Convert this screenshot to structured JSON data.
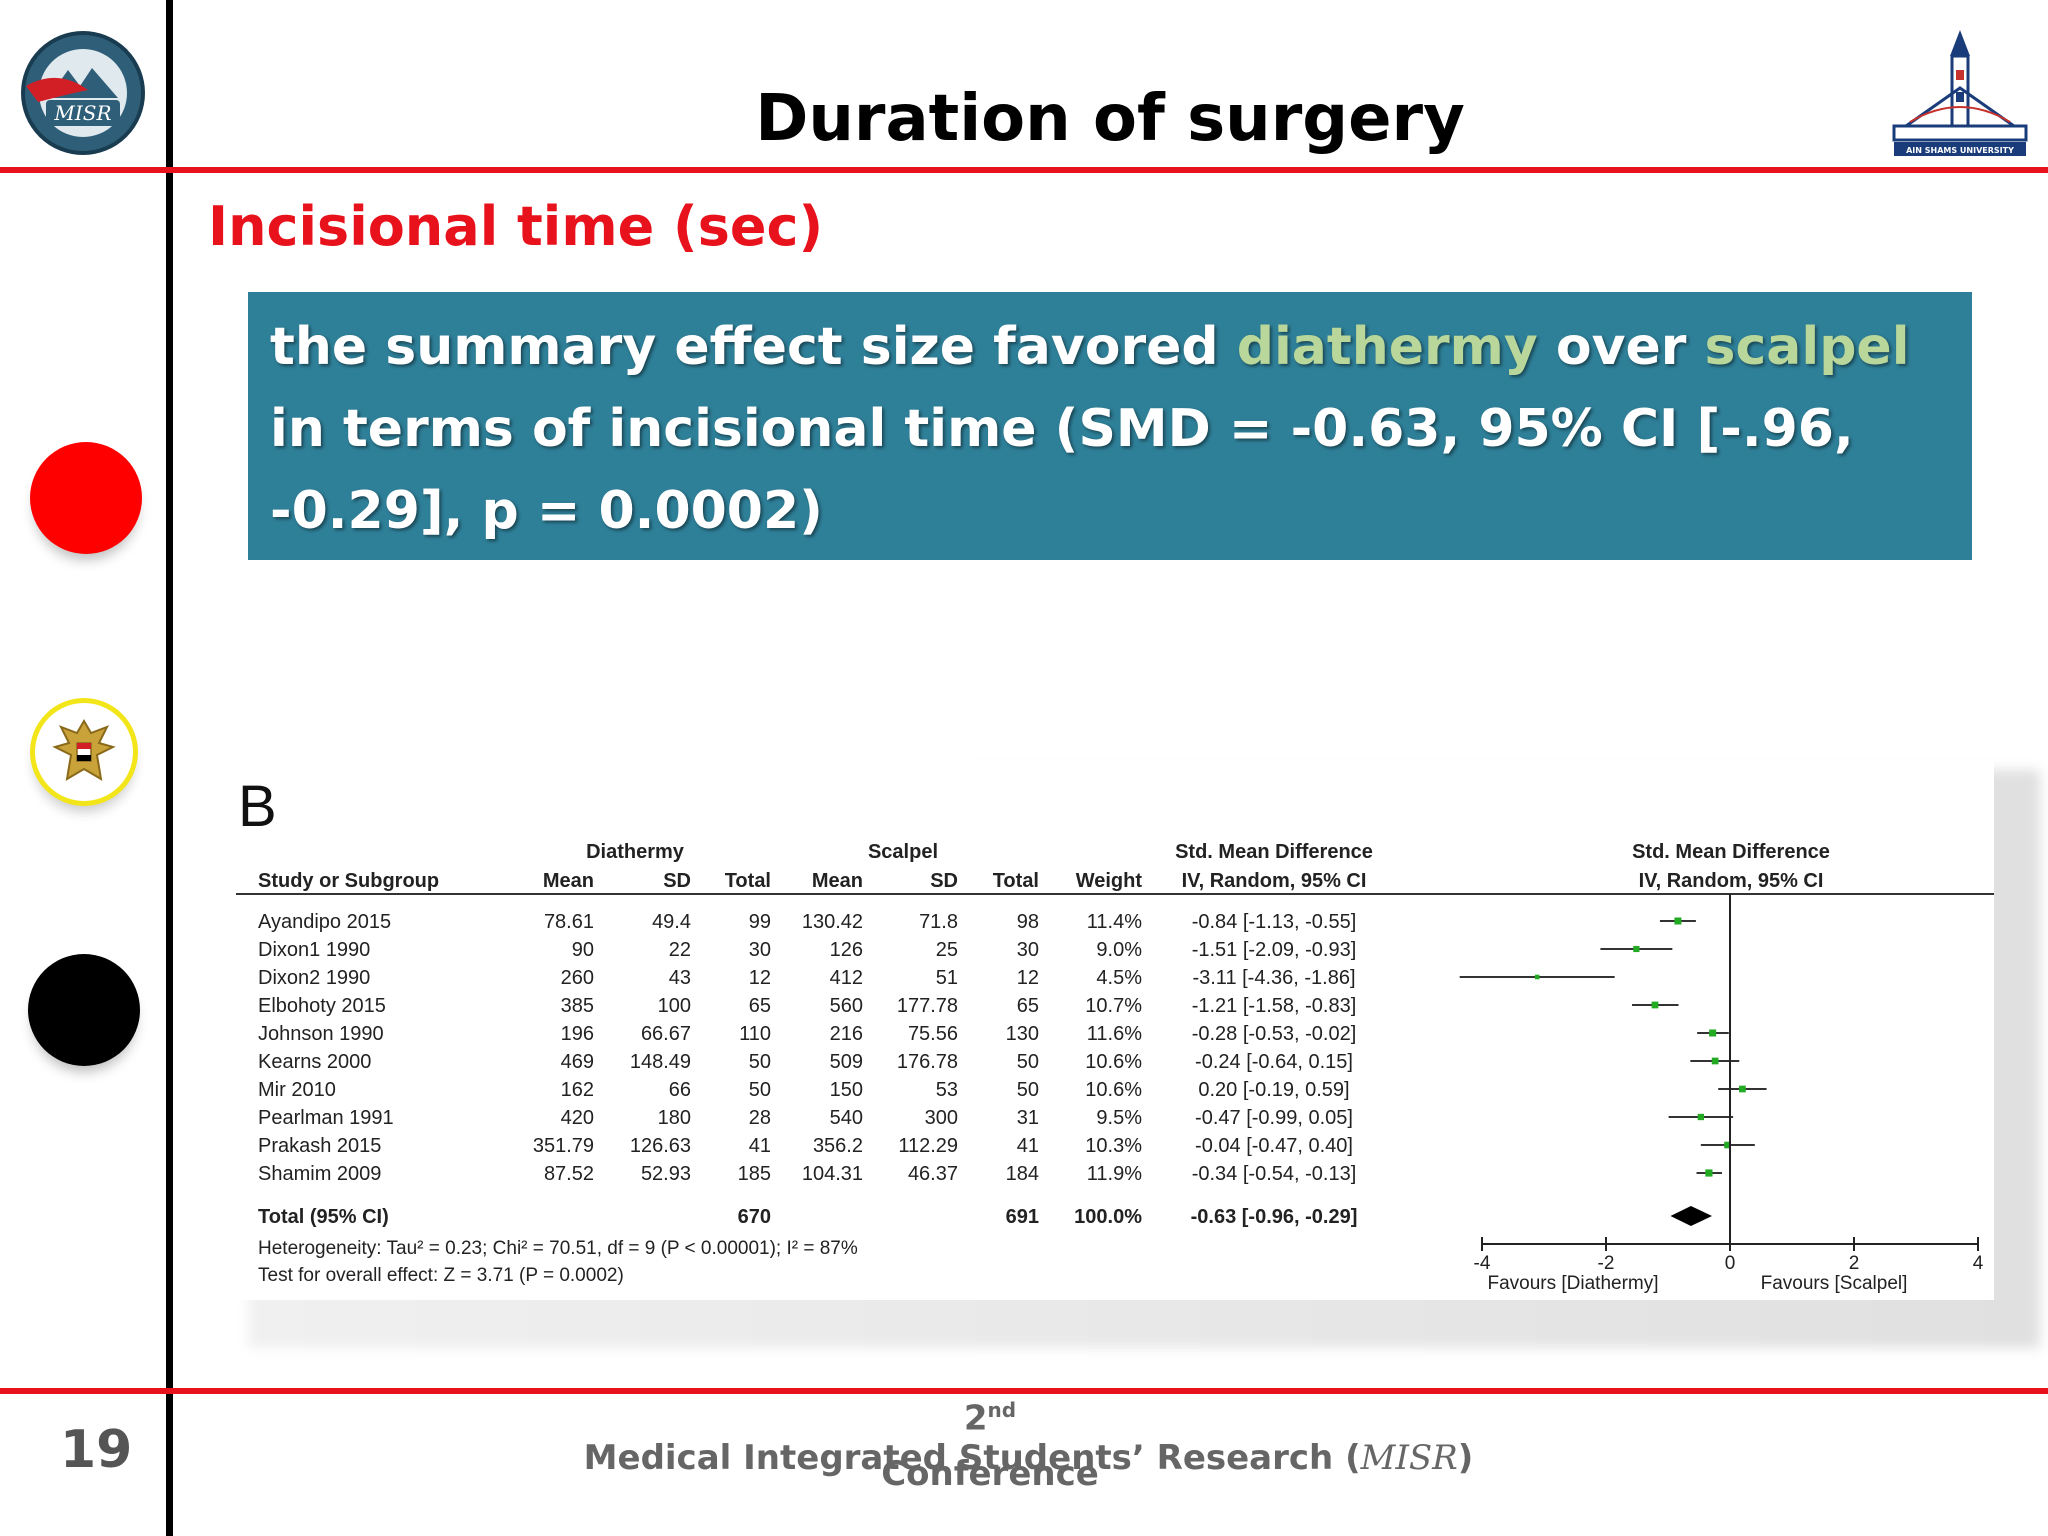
{
  "slide": {
    "title": "Duration of surgery",
    "subtitle": "Incisional time (sec)",
    "summary": {
      "part1": "the summary effect size favored ",
      "highlight1": "diathermy",
      "part2": " over ",
      "highlight2": "scalpel",
      "part3": " in terms of incisional time (SMD = -0.63, 95% CI [-.96, -0.29], p = 0.0002)"
    },
    "page_number": "19",
    "footer": {
      "ordinal": "2",
      "ordinal_suffix": "nd",
      "line1_text": "  Medical Integrated Students’ Research (",
      "line1_abbrev": "MISR",
      "line1_close": ")",
      "line2": "Conference"
    }
  },
  "logos": {
    "left": "MISR",
    "right": "AIN SHAMS UNIVERSITY"
  },
  "chart_data": {
    "type": "forest",
    "panel_label": "B",
    "group_headers": [
      "Diathermy",
      "Scalpel"
    ],
    "column_headers": [
      "Study or Subgroup",
      "Mean",
      "SD",
      "Total",
      "Mean",
      "SD",
      "Total",
      "Weight",
      "IV, Random, 95% CI",
      "IV, Random, 95% CI"
    ],
    "effect_header": "Std. Mean Difference",
    "studies": [
      {
        "name": "Ayandipo 2015",
        "d_mean": "78.61",
        "d_sd": "49.4",
        "d_total": "99",
        "s_mean": "130.42",
        "s_sd": "71.8",
        "s_total": "98",
        "weight": "11.4%",
        "ci_text": "-0.84 [-1.13, -0.55]",
        "smd": -0.84,
        "lo": -1.13,
        "hi": -0.55,
        "w": 11.4
      },
      {
        "name": "Dixon1 1990",
        "d_mean": "90",
        "d_sd": "22",
        "d_total": "30",
        "s_mean": "126",
        "s_sd": "25",
        "s_total": "30",
        "weight": "9.0%",
        "ci_text": "-1.51 [-2.09, -0.93]",
        "smd": -1.51,
        "lo": -2.09,
        "hi": -0.93,
        "w": 9.0
      },
      {
        "name": "Dixon2 1990",
        "d_mean": "260",
        "d_sd": "43",
        "d_total": "12",
        "s_mean": "412",
        "s_sd": "51",
        "s_total": "12",
        "weight": "4.5%",
        "ci_text": "-3.11 [-4.36, -1.86]",
        "smd": -3.11,
        "lo": -4.36,
        "hi": -1.86,
        "w": 4.5
      },
      {
        "name": "Elbohoty 2015",
        "d_mean": "385",
        "d_sd": "100",
        "d_total": "65",
        "s_mean": "560",
        "s_sd": "177.78",
        "s_total": "65",
        "weight": "10.7%",
        "ci_text": "-1.21 [-1.58, -0.83]",
        "smd": -1.21,
        "lo": -1.58,
        "hi": -0.83,
        "w": 10.7
      },
      {
        "name": "Johnson 1990",
        "d_mean": "196",
        "d_sd": "66.67",
        "d_total": "110",
        "s_mean": "216",
        "s_sd": "75.56",
        "s_total": "130",
        "weight": "11.6%",
        "ci_text": "-0.28 [-0.53, -0.02]",
        "smd": -0.28,
        "lo": -0.53,
        "hi": -0.02,
        "w": 11.6
      },
      {
        "name": "Kearns 2000",
        "d_mean": "469",
        "d_sd": "148.49",
        "d_total": "50",
        "s_mean": "509",
        "s_sd": "176.78",
        "s_total": "50",
        "weight": "10.6%",
        "ci_text": "-0.24 [-0.64, 0.15]",
        "smd": -0.24,
        "lo": -0.64,
        "hi": 0.15,
        "w": 10.6
      },
      {
        "name": "Mir 2010",
        "d_mean": "162",
        "d_sd": "66",
        "d_total": "50",
        "s_mean": "150",
        "s_sd": "53",
        "s_total": "50",
        "weight": "10.6%",
        "ci_text": "0.20 [-0.19, 0.59]",
        "smd": 0.2,
        "lo": -0.19,
        "hi": 0.59,
        "w": 10.6
      },
      {
        "name": "Pearlman 1991",
        "d_mean": "420",
        "d_sd": "180",
        "d_total": "28",
        "s_mean": "540",
        "s_sd": "300",
        "s_total": "31",
        "weight": "9.5%",
        "ci_text": "-0.47 [-0.99, 0.05]",
        "smd": -0.47,
        "lo": -0.99,
        "hi": 0.05,
        "w": 9.5
      },
      {
        "name": "Prakash 2015",
        "d_mean": "351.79",
        "d_sd": "126.63",
        "d_total": "41",
        "s_mean": "356.2",
        "s_sd": "112.29",
        "s_total": "41",
        "weight": "10.3%",
        "ci_text": "-0.04 [-0.47, 0.40]",
        "smd": -0.04,
        "lo": -0.47,
        "hi": 0.4,
        "w": 10.3
      },
      {
        "name": "Shamim 2009",
        "d_mean": "87.52",
        "d_sd": "52.93",
        "d_total": "185",
        "s_mean": "104.31",
        "s_sd": "46.37",
        "s_total": "184",
        "weight": "11.9%",
        "ci_text": "-0.34 [-0.54, -0.13]",
        "smd": -0.34,
        "lo": -0.54,
        "hi": -0.13,
        "w": 11.9
      }
    ],
    "total": {
      "name": "Total (95% CI)",
      "d_total": "670",
      "s_total": "691",
      "weight": "100.0%",
      "ci_text": "-0.63 [-0.96, -0.29]",
      "smd": -0.63,
      "lo": -0.96,
      "hi": -0.29
    },
    "heterogeneity": "Heterogeneity: Tau² = 0.23; Chi² = 70.51, df = 9 (P < 0.00001); I² = 87%",
    "overall_effect": "Test for overall effect: Z = 3.71 (P = 0.0002)",
    "x_axis": {
      "min": -4,
      "max": 4,
      "ticks": [
        -4,
        -2,
        0,
        2,
        4
      ]
    },
    "axis_labels": {
      "left": "Favours [Diathermy]",
      "right": "Favours [Scalpel]"
    },
    "colors": {
      "marker": "#22aa22",
      "diamond": "#000000"
    }
  }
}
